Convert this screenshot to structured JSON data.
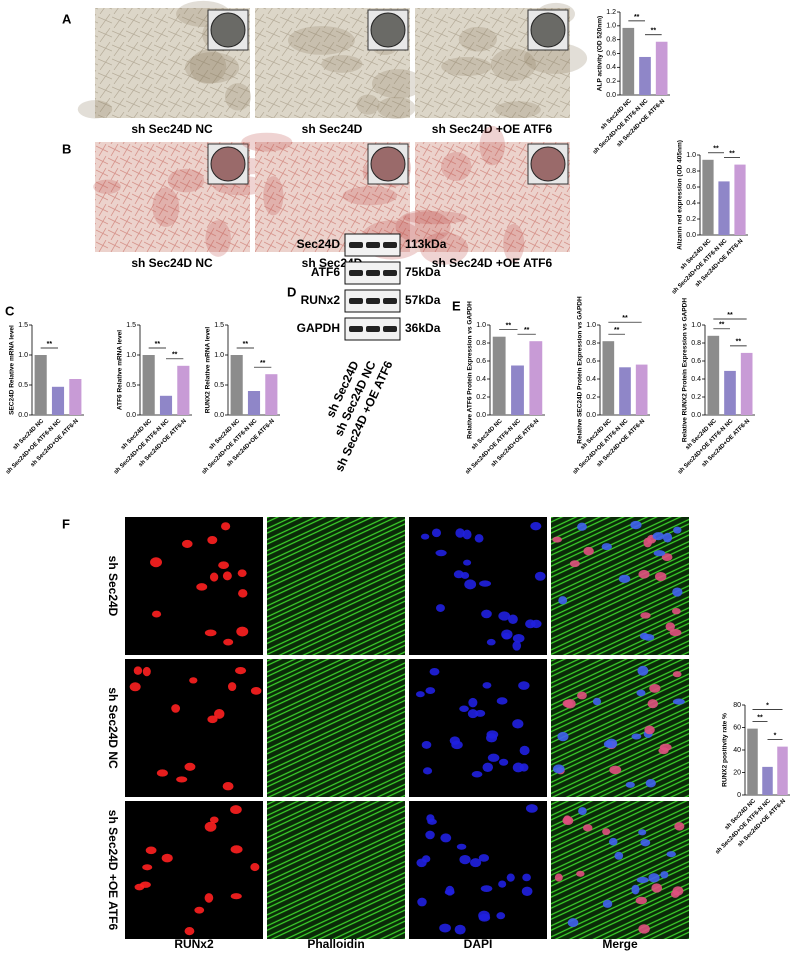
{
  "panel_labels": [
    "A",
    "B",
    "C",
    "D",
    "E",
    "F"
  ],
  "captions_a": [
    "sh Sec24D NC",
    "sh Sec24D",
    "sh Sec24D +OE ATF6"
  ],
  "captions_b": [
    "sh Sec24D NC",
    "sh Sec24D",
    "sh Sec24D +OE ATF6"
  ],
  "blot": {
    "proteins": [
      "Sec24D",
      "ATF6",
      "RUNx2",
      "GAPDH"
    ],
    "sizes": [
      "113kDa",
      "75kDa",
      "57kDa",
      "36kDa"
    ],
    "lanes": [
      "sh Sec24D",
      "sh Sec24D NC",
      "sh Sec24D +OE ATF6"
    ]
  },
  "if_rows": [
    "sh Sec24D",
    "sh Sec24D NC",
    "sh Sec24D +OE ATF6"
  ],
  "if_columns": [
    "RUNx2",
    "Phalloidin",
    "DAPI",
    "Merge"
  ],
  "chart_data": [
    {
      "type": "bar",
      "ylabel": "ALP activity (OD 520nm)",
      "categories": [
        "sh Sec24D NC",
        "sh Sec24D+OE ATF6-N NC",
        "sh Sec24D+OE ATF6-N"
      ],
      "values": [
        0.97,
        0.55,
        0.77
      ],
      "colors": [
        "#8c8c8c",
        "#8f86c8",
        "#c89bd6"
      ],
      "ylim": [
        0,
        1.2
      ],
      "yticks": [
        {
          "value": 0,
          "label": "0.0"
        },
        0.2,
        0.4,
        0.6,
        0.8,
        {
          "value": 1,
          "label": "1.0"
        },
        1.2
      ],
      "annotations": [
        {
          "label": "**",
          "between": [
            0,
            1
          ]
        },
        {
          "label": "**",
          "between": [
            1,
            2
          ]
        }
      ]
    },
    {
      "type": "bar",
      "ylabel": "Alizarin red expression (OD 405nm)",
      "categories": [
        "sh Sec24D NC",
        "sh Sec24D+OE ATF6-N NC",
        "sh Sec24D+OE ATF6-N"
      ],
      "values": [
        0.94,
        0.67,
        0.88
      ],
      "colors": [
        "#8c8c8c",
        "#8f86c8",
        "#c89bd6"
      ],
      "ylim": [
        0,
        1
      ],
      "yticks": [
        {
          "value": 0,
          "label": "0.0"
        },
        0.2,
        0.4,
        0.6,
        0.8,
        {
          "value": 1,
          "label": "1.0"
        }
      ],
      "annotations": [
        {
          "label": "**",
          "between": [
            0,
            1
          ]
        },
        {
          "label": "**",
          "between": [
            1,
            2
          ]
        }
      ]
    },
    {
      "type": "bar",
      "ylabel": "SEC24D Relative mRNA level",
      "categories": [
        "sh Sec24D NC",
        "sh Sec24D+OE ATF6-N NC",
        "sh Sec24D+OE ATF6-N"
      ],
      "values": [
        1.0,
        0.47,
        0.6
      ],
      "colors": [
        "#8c8c8c",
        "#8f86c8",
        "#c89bd6"
      ],
      "ylim": [
        0,
        1.5
      ],
      "yticks": [
        {
          "value": 0,
          "label": "0.0"
        },
        0.5,
        {
          "value": 1,
          "label": "1.0"
        },
        1.5
      ],
      "annotations": [
        {
          "label": "**",
          "between": [
            0,
            1
          ]
        }
      ]
    },
    {
      "type": "bar",
      "ylabel": "ATF6 Relative mRNA level",
      "categories": [
        "sh Sec24D NC",
        "sh Sec24D+OE ATF6-N NC",
        "sh Sec24D+OE ATF6-N"
      ],
      "values": [
        1.0,
        0.32,
        0.82
      ],
      "colors": [
        "#8c8c8c",
        "#8f86c8",
        "#c89bd6"
      ],
      "ylim": [
        0,
        1.5
      ],
      "yticks": [
        {
          "value": 0,
          "label": "0.0"
        },
        0.5,
        {
          "value": 1,
          "label": "1.0"
        },
        1.5
      ],
      "annotations": [
        {
          "label": "**",
          "between": [
            0,
            1
          ]
        },
        {
          "label": "**",
          "between": [
            1,
            2
          ]
        }
      ]
    },
    {
      "type": "bar",
      "ylabel": "RUNX2 Relative mRNA level",
      "categories": [
        "sh Sec24D NC",
        "sh Sec24D+OE ATF6-N NC",
        "sh Sec24D+OE ATF6-N"
      ],
      "values": [
        1.0,
        0.4,
        0.68
      ],
      "colors": [
        "#8c8c8c",
        "#8f86c8",
        "#c89bd6"
      ],
      "ylim": [
        0,
        1.5
      ],
      "yticks": [
        {
          "value": 0,
          "label": "0.0"
        },
        0.5,
        {
          "value": 1,
          "label": "1.0"
        },
        1.5
      ],
      "annotations": [
        {
          "label": "**",
          "between": [
            0,
            1
          ]
        },
        {
          "label": "**",
          "between": [
            1,
            2
          ]
        }
      ]
    },
    {
      "type": "bar",
      "ylabel": "Relative ATF6 Protein Expression vs GAPDH",
      "categories": [
        "sh Sec24D NC",
        "sh Sec24D+OE ATF6-N NC",
        "sh Sec24D+OE ATF6-N"
      ],
      "values": [
        0.87,
        0.55,
        0.82
      ],
      "colors": [
        "#8c8c8c",
        "#8f86c8",
        "#c89bd6"
      ],
      "ylim": [
        0,
        1
      ],
      "yticks": [
        {
          "value": 0,
          "label": "0.0"
        },
        0.2,
        0.4,
        0.6,
        0.8,
        {
          "value": 1,
          "label": "1.0"
        }
      ],
      "annotations": [
        {
          "label": "**",
          "between": [
            0,
            1
          ]
        },
        {
          "label": "**",
          "between": [
            1,
            2
          ]
        }
      ]
    },
    {
      "type": "bar",
      "ylabel": "Relative SEC24D Protein Expression vs GAPDH",
      "categories": [
        "sh Sec24D NC",
        "sh Sec24D+OE ATF6-N NC",
        "sh Sec24D+OE ATF6-N"
      ],
      "values": [
        0.82,
        0.53,
        0.56
      ],
      "colors": [
        "#8c8c8c",
        "#8f86c8",
        "#c89bd6"
      ],
      "ylim": [
        0,
        1
      ],
      "yticks": [
        {
          "value": 0,
          "label": "0.0"
        },
        0.2,
        0.4,
        0.6,
        0.8,
        {
          "value": 1,
          "label": "1.0"
        }
      ],
      "annotations": [
        {
          "label": "**",
          "between": [
            0,
            1
          ]
        },
        {
          "label": "**",
          "between": [
            0,
            2
          ]
        }
      ]
    },
    {
      "type": "bar",
      "ylabel": "Relative RUNX2 Protein Expression vs GAPDH",
      "categories": [
        "sh Sec24D NC",
        "sh Sec24D+OE ATF6-N NC",
        "sh Sec24D+OE ATF6-N"
      ],
      "values": [
        0.88,
        0.49,
        0.69
      ],
      "colors": [
        "#8c8c8c",
        "#8f86c8",
        "#c89bd6"
      ],
      "ylim": [
        0,
        1
      ],
      "yticks": [
        {
          "value": 0,
          "label": "0.0"
        },
        0.2,
        0.4,
        0.6,
        0.8,
        {
          "value": 1,
          "label": "1.0"
        }
      ],
      "annotations": [
        {
          "label": "**",
          "between": [
            0,
            1
          ]
        },
        {
          "label": "**",
          "between": [
            1,
            2
          ]
        },
        {
          "label": "**",
          "between": [
            0,
            2
          ]
        }
      ]
    },
    {
      "type": "bar",
      "ylabel": "RUNX2 positivity rate %",
      "categories": [
        "sh Sec24D NC",
        "sh Sec24D+OE ATF6-N NC",
        "sh Sec24D+OE ATF6-N"
      ],
      "values": [
        59,
        25,
        43
      ],
      "colors": [
        "#8c8c8c",
        "#8f86c8",
        "#c89bd6"
      ],
      "ylim": [
        0,
        80
      ],
      "yticks": [
        0,
        20,
        40,
        60,
        80
      ],
      "annotations": [
        {
          "label": "**",
          "between": [
            0,
            1
          ]
        },
        {
          "label": "*",
          "between": [
            1,
            2
          ]
        },
        {
          "label": "*",
          "between": [
            0,
            2
          ]
        }
      ]
    }
  ]
}
